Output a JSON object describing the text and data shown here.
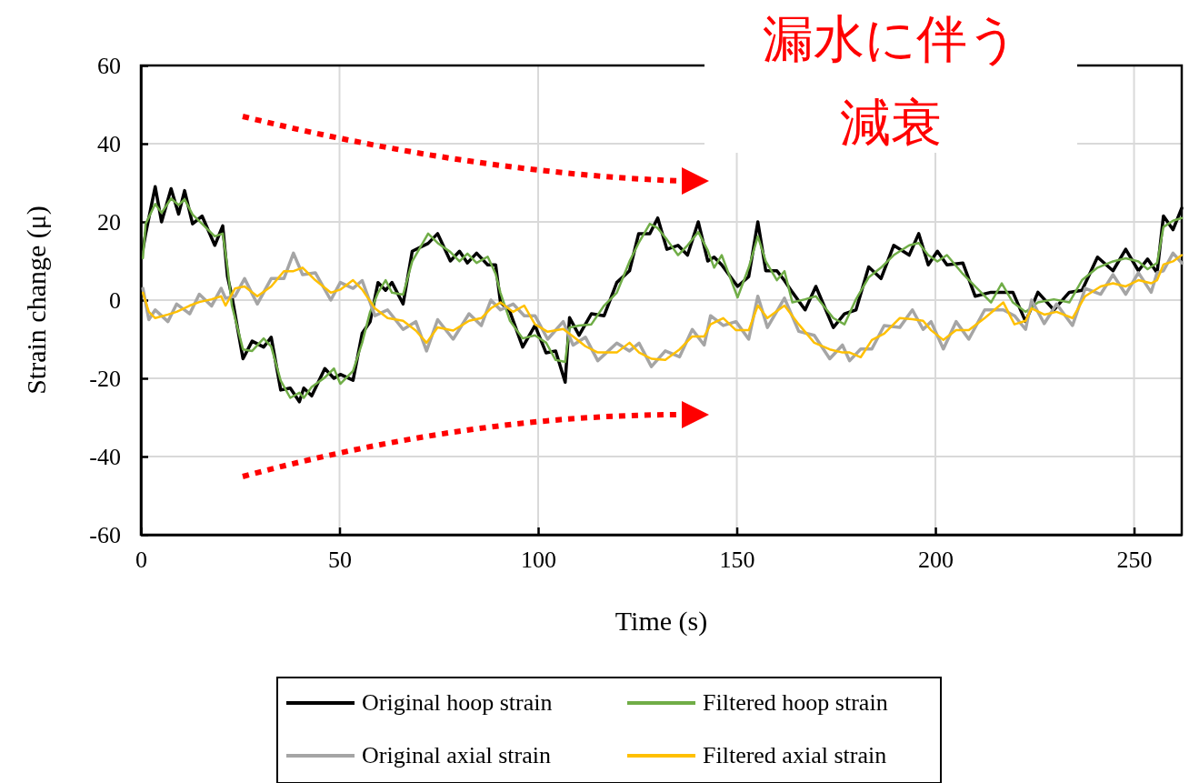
{
  "chart_data": {
    "type": "line",
    "xlabel": "Time (s)",
    "ylabel": "Strain change (μ)",
    "xlim": [
      0,
      262
    ],
    "xticks": [
      0,
      50,
      100,
      150,
      200,
      250
    ],
    "ylim": [
      -60,
      60
    ],
    "yticks": [
      -60,
      -40,
      -20,
      0,
      20,
      40,
      60
    ],
    "grid": true,
    "legend": "bottom",
    "marker": "none",
    "line_style": "solid",
    "annotations": [
      "漏水に伴う",
      "減衰"
    ],
    "series": [
      {
        "name": "Original hoop strain",
        "color": "#000000",
        "x": [
          0.5,
          1.2,
          3.6,
          5.2,
          7.6,
          9.5,
          11,
          13,
          15.4,
          18.6,
          20.6,
          21.8,
          22.9,
          25.7,
          28,
          30.9,
          32.8,
          35.2,
          37.6,
          39.9,
          41,
          43,
          46.3,
          48.6,
          50.2,
          53.4,
          55.7,
          57.7,
          59.7,
          61.6,
          63.2,
          66,
          68.3,
          72.3,
          74.7,
          77.9,
          80.2,
          82.2,
          84.5,
          87.3,
          89.3,
          90.5,
          92.9,
          96.1,
          99.2,
          102,
          104.4,
          106.8,
          107.9,
          110.3,
          113.4,
          116.6,
          119.8,
          123,
          125.3,
          128.1,
          130.1,
          132.4,
          135.2,
          137.6,
          140.3,
          142.7,
          144.3,
          146.2,
          150.2,
          153,
          155.3,
          157.3,
          160.1,
          162,
          164,
          167.2,
          169.9,
          174.3,
          177.1,
          180,
          183.2,
          186.3,
          189.5,
          193.4,
          195.8,
          198.2,
          200.5,
          202.9,
          206.9,
          210,
          214,
          216.7,
          219.5,
          222.7,
          225.8,
          229.8,
          233.7,
          236.9,
          240.8,
          244.7,
          247.9,
          251.1,
          253.4,
          255.8,
          257.4,
          259.8,
          262
        ],
        "values": [
          13,
          17,
          29,
          20,
          28.5,
          22,
          28,
          19.5,
          21.5,
          14,
          19,
          6,
          1,
          -15,
          -10.5,
          -12,
          -9.5,
          -23,
          -22.5,
          -26,
          -22.5,
          -24.5,
          -17.5,
          -20,
          -19,
          -20.5,
          -8.5,
          -5.5,
          4.5,
          2.5,
          4.5,
          -1,
          12.5,
          14.5,
          17,
          10,
          12.5,
          9.5,
          12,
          9,
          9,
          -0.5,
          -3,
          -12,
          -6.5,
          -13.5,
          -13,
          -21,
          -4.5,
          -9,
          -3.5,
          -4,
          4.5,
          7.5,
          17,
          17,
          21,
          13,
          14,
          11.5,
          20,
          10,
          11,
          9,
          3.5,
          6,
          20,
          7.5,
          7.5,
          5,
          2,
          -2.5,
          3.5,
          -7,
          -3.5,
          -2.5,
          8.5,
          5.5,
          14,
          11.5,
          17,
          9,
          12.5,
          9,
          9.5,
          1,
          2,
          2,
          2,
          -5.5,
          2,
          -2.5,
          2,
          2.5,
          11,
          7.5,
          13,
          7.5,
          10.5,
          7,
          21.5,
          18,
          23.5
        ]
      },
      {
        "name": "Filtered hoop strain",
        "color": "#70ad47",
        "x": [
          0.5,
          1.2,
          3.6,
          5.2,
          7.6,
          9.5,
          11,
          13,
          15.4,
          18.6,
          20.6,
          21.8,
          22.9,
          25.7,
          28,
          30.9,
          32.8,
          35.2,
          37.6,
          39.9,
          41,
          43,
          46.3,
          48.6,
          50.2,
          53.4,
          55.7,
          57.7,
          59.7,
          61.6,
          63.2,
          66,
          68.3,
          72.3,
          74.7,
          77.9,
          80.2,
          82.2,
          84.5,
          87.3,
          89.3,
          90.5,
          92.9,
          96.1,
          99.2,
          102,
          104.4,
          106.8,
          107.9,
          110.3,
          113.4,
          116.6,
          119.8,
          123,
          125.3,
          128.1,
          130.1,
          132.4,
          135.2,
          137.6,
          140.3,
          142.7,
          144.3,
          146.2,
          150.2,
          153,
          155.3,
          157.3,
          160.1,
          162,
          164,
          167.2,
          169.9,
          174.3,
          177.1,
          180,
          183.2,
          186.3,
          189.5,
          193.4,
          195.8,
          198.2,
          200.5,
          202.9,
          206.9,
          210,
          214,
          216.7,
          219.5,
          222.7,
          225.8,
          229.8,
          233.7,
          236.9,
          240.8,
          244.7,
          247.9,
          251.1,
          253.4,
          255.8,
          257.4,
          259.8,
          262
        ],
        "values": [
          10.7,
          19.5,
          24.6,
          22.3,
          26,
          24.3,
          25.8,
          21.9,
          19.5,
          16.3,
          17,
          8.4,
          -1.4,
          -12.6,
          -13,
          -9.8,
          -11.9,
          -20.6,
          -25,
          -23.7,
          -25,
          -22.2,
          -19.8,
          -17.5,
          -21.4,
          -18.1,
          -10.9,
          -3,
          1.9,
          5.1,
          1.9,
          1.4,
          9.9,
          17,
          14.6,
          12.3,
          9.9,
          11.9,
          9.5,
          11.1,
          6.7,
          1.9,
          -5.3,
          -9.8,
          -9,
          -10.9,
          -15.3,
          -15.8,
          -7,
          -6.5,
          -6.2,
          -1.4,
          1.9,
          9.9,
          14.6,
          19.5,
          18.4,
          15.5,
          11.5,
          14,
          17.4,
          12.7,
          8.3,
          11.5,
          0.7,
          8.3,
          16.3,
          9.9,
          5.1,
          7.4,
          -0.6,
          0.2,
          1,
          -4.6,
          -6.2,
          0.2,
          5.8,
          8.3,
          11.5,
          14,
          14.6,
          11.5,
          9.9,
          11.5,
          6.7,
          3.5,
          -0.6,
          4.3,
          -0.6,
          -3,
          -0.6,
          0.2,
          -0.6,
          5.1,
          8.3,
          9.9,
          10.7,
          9.9,
          7.9,
          9.5,
          18.7,
          20.3,
          21
        ]
      },
      {
        "name": "Original axial strain",
        "color": "#a5a5a5",
        "x": [
          0.5,
          2,
          3.6,
          6.8,
          9,
          12.3,
          14.7,
          17.8,
          20.2,
          21.3,
          23.7,
          26.1,
          29.3,
          32.8,
          36,
          38.4,
          40.7,
          43.9,
          47.8,
          50.2,
          53.4,
          55.7,
          58.9,
          62.1,
          66,
          69.2,
          71.9,
          74.7,
          78.6,
          82.6,
          85.7,
          88.1,
          90.5,
          93.7,
          96.5,
          99.2,
          102.4,
          106.3,
          108.8,
          111.9,
          115,
          119.8,
          123,
          125.4,
          128.5,
          132,
          135.6,
          138.8,
          141.8,
          143.4,
          146.6,
          149.8,
          153,
          155.3,
          157.7,
          162,
          165.6,
          169.5,
          173.4,
          176.6,
          178.4,
          181.2,
          184,
          187.1,
          191,
          194.2,
          196.9,
          198.9,
          202,
          205.2,
          208.4,
          212.4,
          217.1,
          219.9,
          222.7,
          224.2,
          227.4,
          230.5,
          234.5,
          237.7,
          241.6,
          244.7,
          247.9,
          251.1,
          254.3,
          255.8,
          257.4,
          259.8,
          262
        ],
        "values": [
          3,
          -5,
          -2.5,
          -5.5,
          -1,
          -3.5,
          1.5,
          -1.5,
          3,
          0.5,
          1,
          5.5,
          -1,
          5.5,
          5.5,
          12,
          6.5,
          7,
          0,
          4.5,
          3,
          5,
          -4,
          -2.5,
          -7.5,
          -5.5,
          -13,
          -5,
          -10,
          -3.5,
          -6.5,
          0,
          -2.5,
          -1,
          -4,
          -4,
          -10,
          -5.5,
          -11.5,
          -9.5,
          -15.5,
          -11,
          -13,
          -11,
          -17,
          -13,
          -14.5,
          -7.5,
          -11.5,
          -4,
          -6.5,
          -5.5,
          -10,
          1,
          -7,
          0.5,
          -8,
          -9,
          -15,
          -11.5,
          -15.5,
          -12.5,
          -12.5,
          -6.5,
          -7,
          -2.5,
          -7.5,
          -5.5,
          -12.5,
          -5.5,
          -10,
          -2.5,
          -2.5,
          -4,
          -7.5,
          0,
          -6,
          -1,
          -6.5,
          3,
          1.5,
          6.5,
          1.5,
          7,
          2,
          7,
          7.5,
          12,
          9.5
        ]
      },
      {
        "name": "Filtered axial strain",
        "color": "#ffc000",
        "x": [
          0.5,
          2,
          3.6,
          6.8,
          9,
          12.3,
          14.7,
          17.8,
          20.2,
          21.3,
          23.7,
          26.1,
          29.3,
          32.8,
          36,
          38.4,
          40.7,
          43.9,
          47.8,
          50.2,
          53.4,
          55.7,
          58.9,
          62.1,
          66,
          69.2,
          71.9,
          74.7,
          78.6,
          82.6,
          85.7,
          88.1,
          90.5,
          93.7,
          96.5,
          99.2,
          102.4,
          106.3,
          108.8,
          111.9,
          115,
          119.8,
          123,
          125.4,
          128.5,
          132,
          135.6,
          138.8,
          141.8,
          143.4,
          146.6,
          149.8,
          153,
          155.3,
          157.7,
          162,
          165.6,
          169.5,
          173.4,
          176.6,
          178.4,
          181.2,
          184,
          187.1,
          191,
          194.2,
          196.9,
          198.9,
          202,
          205.2,
          208.4,
          212.4,
          217.1,
          219.9,
          222.7,
          224.2,
          227.4,
          230.5,
          234.5,
          237.7,
          241.6,
          244.7,
          247.9,
          251.1,
          254.3,
          255.8,
          257.4,
          259.8,
          262
        ],
        "values": [
          1.9,
          -3,
          -4.6,
          -3.7,
          -3,
          -1.4,
          -0.5,
          0.2,
          1,
          -1.4,
          3,
          3.5,
          1,
          3.5,
          7.4,
          7.4,
          8.3,
          5.1,
          1.9,
          2.7,
          5.1,
          2.7,
          -2.1,
          -4.6,
          -5.3,
          -7.8,
          -10.9,
          -7,
          -7.8,
          -5.3,
          -4.6,
          -2.1,
          -0.6,
          -3,
          -1.4,
          -6.2,
          -8.1,
          -7.4,
          -9.3,
          -11.8,
          -13.4,
          -13.4,
          -10.9,
          -13.4,
          -15,
          -15.3,
          -12.6,
          -9.3,
          -9.3,
          -6.2,
          -4.6,
          -7.7,
          -7.7,
          -1.4,
          -4.6,
          -1.4,
          -6.2,
          -10.9,
          -12.6,
          -13.4,
          -13.4,
          -14.6,
          -10.2,
          -8.6,
          -4.6,
          -4.9,
          -5.3,
          -7.7,
          -10.2,
          -7.7,
          -7.7,
          -4.6,
          -0.6,
          -6.2,
          -5.3,
          -2.1,
          -3.7,
          -3,
          -4.6,
          1,
          3.5,
          4.3,
          3.5,
          5.1,
          4.3,
          5.1,
          9.1,
          9.9,
          11.5
        ]
      }
    ]
  }
}
